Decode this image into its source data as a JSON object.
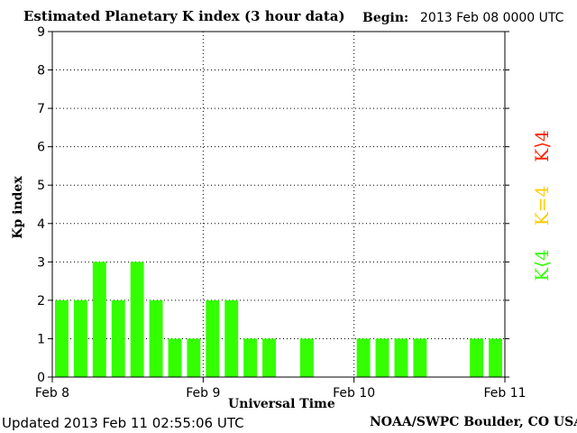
{
  "header": {
    "title": "Estimated Planetary K index (3 hour data)",
    "begin_label": "Begin:",
    "begin_value": "2013 Feb 08 0000 UTC"
  },
  "footer": {
    "updated": "Updated 2013 Feb 11 02:55:06 UTC",
    "credit": "NOAA/SWPC Boulder, CO USA"
  },
  "legend": [
    {
      "label": "K⟨4",
      "color": "#33ff00"
    },
    {
      "label": "K=4",
      "color": "#ffcc00"
    },
    {
      "label": "K⟩4",
      "color": "#ff2200"
    }
  ],
  "chart_data": {
    "type": "bar",
    "title": "Estimated Planetary K index (3 hour data)",
    "xlabel": "Universal Time",
    "ylabel": "Kp index",
    "ylim": [
      0,
      9
    ],
    "yticks": [
      "0",
      "1",
      "2",
      "3",
      "4",
      "5",
      "6",
      "7",
      "8",
      "9"
    ],
    "xticks": [
      "Feb 8",
      "Feb 9",
      "Feb 10",
      "Feb 11"
    ],
    "grid": true,
    "bar_color": "#33ff00",
    "periods_per_day": 8,
    "values": [
      2,
      2,
      3,
      2,
      3,
      2,
      1,
      1,
      2,
      2,
      1,
      1,
      0,
      1,
      0,
      0,
      1,
      1,
      1,
      1,
      0,
      0,
      1,
      1
    ]
  }
}
